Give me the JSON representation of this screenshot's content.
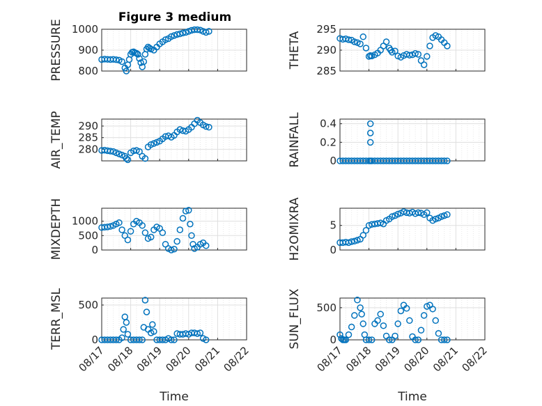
{
  "figure_title": "Figure 3 medium",
  "colors": {
    "marker": "#0072BD",
    "grid": "#dfdfdf",
    "axis": "#262626"
  },
  "chart_data": [
    {
      "type": "scatter",
      "title": "Figure 3 medium",
      "ylabel": "PRESSURE",
      "xlabel": "",
      "ylim": [
        800,
        1000
      ],
      "yticks": [
        800,
        900,
        1000
      ],
      "yticklabels": [
        "800",
        "900",
        "1000"
      ],
      "grid": true,
      "x": [
        0.0,
        0.1,
        0.2,
        0.3,
        0.4,
        0.5,
        0.6,
        0.7,
        0.8,
        0.85,
        0.9,
        0.95,
        1.0,
        1.05,
        1.1,
        1.15,
        1.2,
        1.25,
        1.3,
        1.35,
        1.4,
        1.45,
        1.5,
        1.55,
        1.6,
        1.65,
        1.7,
        1.8,
        1.9,
        2.0,
        2.1,
        2.2,
        2.3,
        2.4,
        2.5,
        2.6,
        2.7,
        2.8,
        2.9,
        3.0,
        3.1,
        3.2,
        3.3,
        3.4,
        3.5,
        3.6,
        3.7
      ],
      "y": [
        855,
        857,
        856,
        855,
        856,
        854,
        852,
        845,
        815,
        800,
        830,
        855,
        880,
        890,
        892,
        888,
        885,
        880,
        860,
        840,
        820,
        845,
        880,
        905,
        915,
        910,
        905,
        900,
        915,
        930,
        940,
        950,
        955,
        965,
        970,
        975,
        978,
        982,
        985,
        990,
        995,
        998,
        998,
        996,
        990,
        985,
        990
      ]
    },
    {
      "type": "scatter",
      "title": "",
      "ylabel": "THETA",
      "xlabel": "",
      "ylim": [
        285,
        295
      ],
      "yticks": [
        285,
        290,
        295
      ],
      "yticklabels": [
        "285",
        "290",
        "295"
      ],
      "grid": true,
      "x": [
        0.0,
        0.1,
        0.2,
        0.3,
        0.4,
        0.5,
        0.6,
        0.7,
        0.8,
        0.9,
        1.0,
        1.05,
        1.1,
        1.2,
        1.3,
        1.4,
        1.5,
        1.6,
        1.7,
        1.75,
        1.8,
        1.9,
        2.0,
        2.1,
        2.2,
        2.3,
        2.4,
        2.5,
        2.6,
        2.7,
        2.8,
        2.9,
        3.0,
        3.1,
        3.2,
        3.3,
        3.4,
        3.5,
        3.6,
        3.7
      ],
      "y": [
        292.8,
        292.6,
        292.7,
        292.5,
        292.4,
        292.0,
        291.8,
        291.5,
        293.2,
        290.5,
        288.5,
        288.7,
        288.6,
        288.9,
        289.3,
        290.0,
        291.0,
        292.0,
        290.5,
        290.0,
        289.5,
        289.8,
        288.6,
        288.3,
        288.7,
        289.0,
        288.8,
        288.9,
        289.2,
        289.0,
        287.5,
        286.5,
        288.5,
        291.0,
        293.0,
        293.5,
        293.2,
        292.5,
        291.8,
        291.0
      ]
    },
    {
      "type": "scatter",
      "title": "",
      "ylabel": "AIR_TEMP",
      "xlabel": "",
      "ylim": [
        275,
        293
      ],
      "yticks": [
        280,
        285,
        290
      ],
      "yticklabels": [
        "280",
        "285",
        "290"
      ],
      "grid": true,
      "x": [
        0.0,
        0.1,
        0.2,
        0.3,
        0.4,
        0.5,
        0.6,
        0.7,
        0.8,
        0.85,
        0.9,
        1.0,
        1.1,
        1.2,
        1.3,
        1.4,
        1.5,
        1.6,
        1.7,
        1.8,
        1.9,
        2.0,
        2.1,
        2.2,
        2.3,
        2.4,
        2.5,
        2.6,
        2.7,
        2.8,
        2.9,
        3.0,
        3.1,
        3.2,
        3.3,
        3.4,
        3.5,
        3.6,
        3.7
      ],
      "y": [
        279.5,
        279.6,
        279.4,
        279.2,
        279.0,
        278.5,
        278.0,
        277.5,
        277.0,
        276.0,
        275.5,
        278.5,
        279.3,
        279.5,
        279.0,
        277.0,
        276.0,
        281.0,
        282.0,
        282.5,
        283.0,
        283.5,
        284.5,
        285.5,
        285.8,
        285.2,
        286.0,
        287.5,
        288.5,
        288.0,
        287.8,
        288.5,
        289.5,
        291.0,
        292.5,
        291.5,
        290.5,
        289.8,
        289.5
      ]
    },
    {
      "type": "scatter",
      "title": "",
      "ylabel": "RAINFALL",
      "xlabel": "",
      "ylim": [
        0,
        0.45
      ],
      "yticks": [
        0,
        0.2,
        0.4
      ],
      "yticklabels": [
        "0",
        "0.2",
        "0.4"
      ],
      "grid": true,
      "x": [
        0.0,
        0.1,
        0.2,
        0.3,
        0.4,
        0.5,
        0.6,
        0.7,
        0.8,
        0.9,
        1.0,
        1.05,
        1.1,
        1.2,
        1.3,
        1.4,
        1.5,
        1.6,
        1.7,
        1.8,
        1.9,
        2.0,
        2.1,
        2.2,
        2.3,
        2.4,
        2.5,
        2.6,
        2.7,
        2.8,
        2.9,
        3.0,
        3.1,
        3.2,
        3.3,
        3.4,
        3.5,
        3.6,
        3.7,
        1.05,
        1.05,
        1.05
      ],
      "y": [
        0,
        0,
        0,
        0,
        0,
        0,
        0,
        0,
        0,
        0,
        0,
        0,
        0,
        0,
        0,
        0,
        0,
        0,
        0,
        0,
        0,
        0,
        0,
        0,
        0,
        0,
        0,
        0,
        0,
        0,
        0,
        0,
        0,
        0,
        0,
        0,
        0,
        0,
        0,
        0.2,
        0.3,
        0.4
      ]
    },
    {
      "type": "scatter",
      "title": "",
      "ylabel": "MIXDEPTH",
      "xlabel": "",
      "ylim": [
        0,
        1450
      ],
      "yticks": [
        0,
        500,
        1000
      ],
      "yticklabels": [
        "0",
        "500",
        "1000"
      ],
      "grid": true,
      "x": [
        0.0,
        0.1,
        0.2,
        0.3,
        0.4,
        0.5,
        0.6,
        0.7,
        0.8,
        0.9,
        1.0,
        1.1,
        1.2,
        1.3,
        1.4,
        1.5,
        1.6,
        1.7,
        1.8,
        1.9,
        2.0,
        2.1,
        2.2,
        2.3,
        2.4,
        2.5,
        2.6,
        2.7,
        2.8,
        2.9,
        3.0,
        3.05,
        3.1,
        3.15,
        3.2,
        3.3,
        3.4,
        3.5,
        3.6
      ],
      "y": [
        780,
        790,
        800,
        820,
        850,
        900,
        950,
        700,
        500,
        350,
        650,
        900,
        1000,
        950,
        850,
        600,
        400,
        450,
        700,
        800,
        750,
        600,
        200,
        50,
        0,
        30,
        300,
        700,
        1100,
        1350,
        1380,
        900,
        500,
        200,
        50,
        100,
        200,
        250,
        150
      ]
    },
    {
      "type": "scatter",
      "title": "",
      "ylabel": "H2OMIXRA",
      "xlabel": "",
      "ylim": [
        0,
        8.5
      ],
      "yticks": [
        0,
        5
      ],
      "yticklabels": [
        "0",
        "5"
      ],
      "grid": true,
      "x": [
        0.0,
        0.1,
        0.2,
        0.3,
        0.4,
        0.5,
        0.6,
        0.7,
        0.8,
        0.9,
        1.0,
        1.1,
        1.2,
        1.3,
        1.4,
        1.5,
        1.6,
        1.7,
        1.8,
        1.9,
        2.0,
        2.1,
        2.2,
        2.3,
        2.4,
        2.5,
        2.6,
        2.7,
        2.8,
        2.9,
        3.0,
        3.1,
        3.2,
        3.3,
        3.4,
        3.5,
        3.6,
        3.7
      ],
      "y": [
        1.5,
        1.5,
        1.6,
        1.5,
        1.7,
        1.8,
        2.0,
        2.2,
        3.0,
        4.0,
        5.0,
        5.2,
        5.3,
        5.4,
        5.5,
        5.3,
        6.0,
        6.3,
        6.8,
        7.0,
        7.3,
        7.5,
        7.8,
        7.6,
        7.5,
        7.7,
        7.4,
        7.6,
        7.5,
        7.2,
        7.6,
        6.5,
        6.0,
        6.3,
        6.5,
        6.8,
        7.0,
        7.2
      ]
    },
    {
      "type": "scatter",
      "title": "",
      "ylabel": "TERR_MSL",
      "xlabel": "",
      "ylim": [
        0,
        600
      ],
      "yticks": [
        0,
        500
      ],
      "yticklabels": [
        "0",
        "500"
      ],
      "grid": true,
      "x": [
        0.0,
        0.1,
        0.2,
        0.3,
        0.4,
        0.5,
        0.6,
        0.7,
        0.75,
        0.8,
        0.85,
        0.9,
        1.0,
        1.1,
        1.2,
        1.3,
        1.4,
        1.45,
        1.5,
        1.55,
        1.6,
        1.7,
        1.75,
        1.8,
        1.9,
        2.0,
        2.1,
        2.2,
        2.3,
        2.4,
        2.5,
        2.6,
        2.7,
        2.8,
        2.9,
        3.0,
        3.1,
        3.2,
        3.3,
        3.4,
        3.5,
        3.6
      ],
      "y": [
        0,
        0,
        0,
        0,
        0,
        0,
        0,
        30,
        150,
        330,
        250,
        80,
        0,
        0,
        0,
        0,
        0,
        180,
        570,
        400,
        150,
        100,
        220,
        120,
        0,
        0,
        0,
        0,
        20,
        0,
        0,
        90,
        80,
        80,
        90,
        80,
        100,
        100,
        90,
        100,
        20,
        0
      ]
    },
    {
      "type": "scatter",
      "title": "",
      "ylabel": "SUN_FLUX",
      "xlabel": "",
      "ylim": [
        0,
        650
      ],
      "yticks": [
        0,
        500
      ],
      "yticklabels": [
        "0",
        "500"
      ],
      "grid": true,
      "x": [
        0.0,
        0.05,
        0.1,
        0.15,
        0.2,
        0.3,
        0.4,
        0.5,
        0.6,
        0.7,
        0.75,
        0.8,
        0.85,
        0.9,
        1.0,
        1.1,
        1.2,
        1.3,
        1.4,
        1.5,
        1.6,
        1.7,
        1.8,
        1.9,
        2.0,
        2.1,
        2.2,
        2.3,
        2.4,
        2.5,
        2.6,
        2.7,
        2.8,
        2.9,
        3.0,
        3.1,
        3.2,
        3.3,
        3.4,
        3.5,
        3.6,
        3.7
      ],
      "y": [
        80,
        20,
        0,
        0,
        0,
        80,
        200,
        380,
        620,
        500,
        400,
        250,
        80,
        0,
        0,
        0,
        250,
        300,
        400,
        220,
        60,
        0,
        0,
        60,
        250,
        450,
        540,
        490,
        300,
        50,
        0,
        0,
        150,
        380,
        520,
        540,
        480,
        300,
        100,
        0,
        0,
        0
      ]
    }
  ],
  "axes": {
    "xticks": [
      0,
      1,
      2,
      3,
      4,
      5
    ],
    "xticklabels": [
      "08/17",
      "08/18",
      "08/19",
      "08/20",
      "08/21",
      "08/22"
    ],
    "xlabel": "Time"
  }
}
